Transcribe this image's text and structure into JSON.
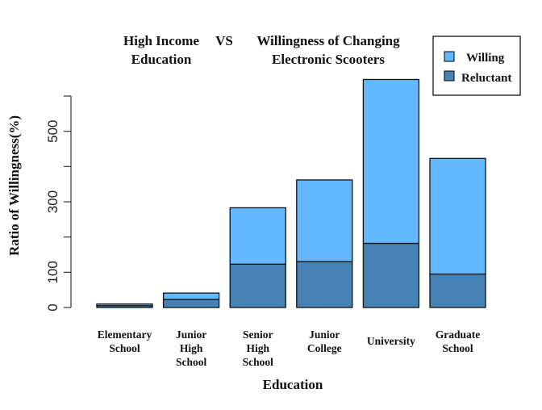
{
  "chart_data": {
    "type": "bar",
    "stacked": true,
    "title_left": [
      "High Income",
      "Education"
    ],
    "title_mid": "VS",
    "title_right": [
      "Willingness of Changing",
      "Electronic Scooters"
    ],
    "xlabel": "Education",
    "ylabel": "Ratio of Willingness(%)",
    "categories": [
      [
        "Elementary",
        "School"
      ],
      [
        "Junior",
        "High",
        "School"
      ],
      [
        "Senior",
        "High",
        "School"
      ],
      [
        "Junior",
        "College"
      ],
      [
        "University"
      ],
      [
        "Graduate",
        "School"
      ]
    ],
    "series": [
      {
        "name": "Reluctant",
        "color": "#4682b4",
        "values": [
          5,
          23,
          123,
          130,
          182,
          95
        ]
      },
      {
        "name": "Willing",
        "color": "#63b8ff",
        "values": [
          5,
          18,
          160,
          232,
          465,
          328
        ]
      }
    ],
    "ylim": [
      0,
      600
    ],
    "yticks": [
      0,
      100,
      200,
      300,
      400,
      500,
      600
    ],
    "ytick_labels": [
      "0",
      "100",
      "",
      "300",
      "",
      "500",
      ""
    ],
    "legend_position": "top-right",
    "grid": false
  }
}
